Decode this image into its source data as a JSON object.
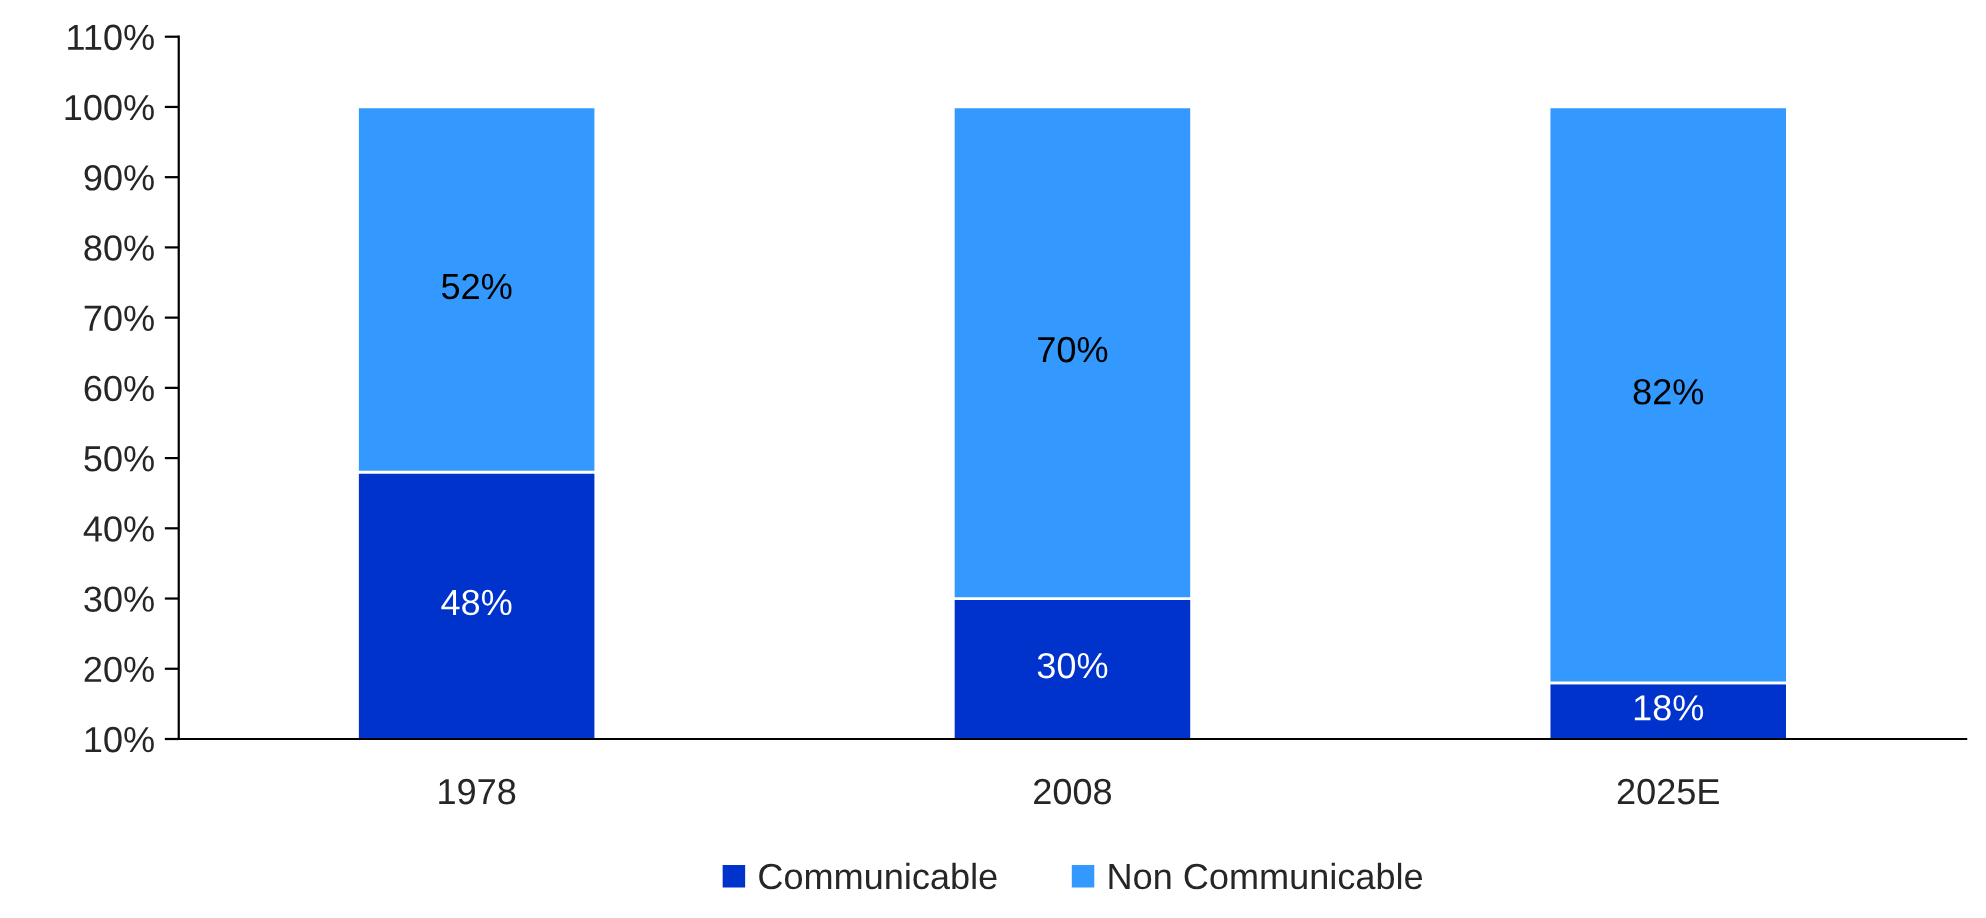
{
  "chart_data": {
    "type": "bar",
    "stacked": true,
    "categories": [
      "1978",
      "2008",
      "2025E"
    ],
    "series": [
      {
        "name": "Communicable",
        "color": "#0033cc",
        "values": [
          48,
          30,
          18
        ],
        "value_labels": [
          "48%",
          "30%",
          "18%"
        ]
      },
      {
        "name": "Non Communicable",
        "color": "#3399ff",
        "values": [
          52,
          70,
          82
        ],
        "value_labels": [
          "52%",
          "70%",
          "82%"
        ]
      }
    ],
    "ylim": [
      10,
      110
    ],
    "yticks": [
      {
        "value": 10,
        "label": "10%"
      },
      {
        "value": 20,
        "label": "20%"
      },
      {
        "value": 30,
        "label": "30%"
      },
      {
        "value": 40,
        "label": "40%"
      },
      {
        "value": 50,
        "label": "50%"
      },
      {
        "value": 60,
        "label": "60%"
      },
      {
        "value": 70,
        "label": "70%"
      },
      {
        "value": 80,
        "label": "80%"
      },
      {
        "value": 90,
        "label": "90%"
      },
      {
        "value": 100,
        "label": "100%"
      },
      {
        "value": 110,
        "label": "110%"
      }
    ],
    "grid": false,
    "legend": "bottom"
  }
}
